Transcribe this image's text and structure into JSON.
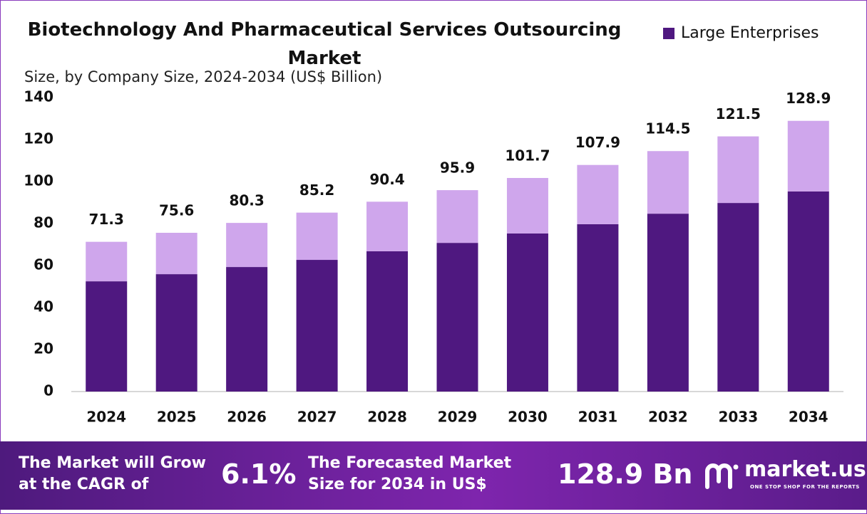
{
  "chart_data": {
    "type": "stacked-bar",
    "title": "Biotechnology And Pharmaceutical Services Outsourcing Market",
    "subtitle": "Size, by Company Size, 2024-2034 (US$ Billion)",
    "categories": [
      "2024",
      "2025",
      "2026",
      "2027",
      "2028",
      "2029",
      "2030",
      "2031",
      "2032",
      "2033",
      "2034"
    ],
    "series": [
      {
        "name": "Large Enterprises",
        "color": "#4f1880",
        "values": [
          52.5,
          55.9,
          59.3,
          62.7,
          66.8,
          70.8,
          75.3,
          79.7,
          84.7,
          89.8,
          95.3
        ]
      },
      {
        "color": "#cfa6ec",
        "values": [
          18.8,
          19.7,
          21.0,
          22.5,
          23.6,
          25.1,
          26.4,
          28.2,
          29.8,
          31.7,
          33.6
        ]
      }
    ],
    "totals": [
      71.3,
      75.6,
      80.3,
      85.2,
      90.4,
      95.9,
      101.7,
      107.9,
      114.5,
      121.5,
      128.9
    ],
    "ylim": [
      0,
      140
    ],
    "yticks": [
      0,
      20,
      40,
      60,
      80,
      100,
      120,
      140
    ],
    "grid": false,
    "legend": "top-right"
  },
  "footer": {
    "cagr_text": [
      "The Market will Grow",
      "at the CAGR of"
    ],
    "cagr_value": "6.1%",
    "forecast_text": [
      "The Forecasted Market",
      "Size for 2034 in US$"
    ],
    "forecast_value": "128.9 Bn",
    "brand": "market.us",
    "tagline": "ONE STOP SHOP FOR THE REPORTS"
  }
}
